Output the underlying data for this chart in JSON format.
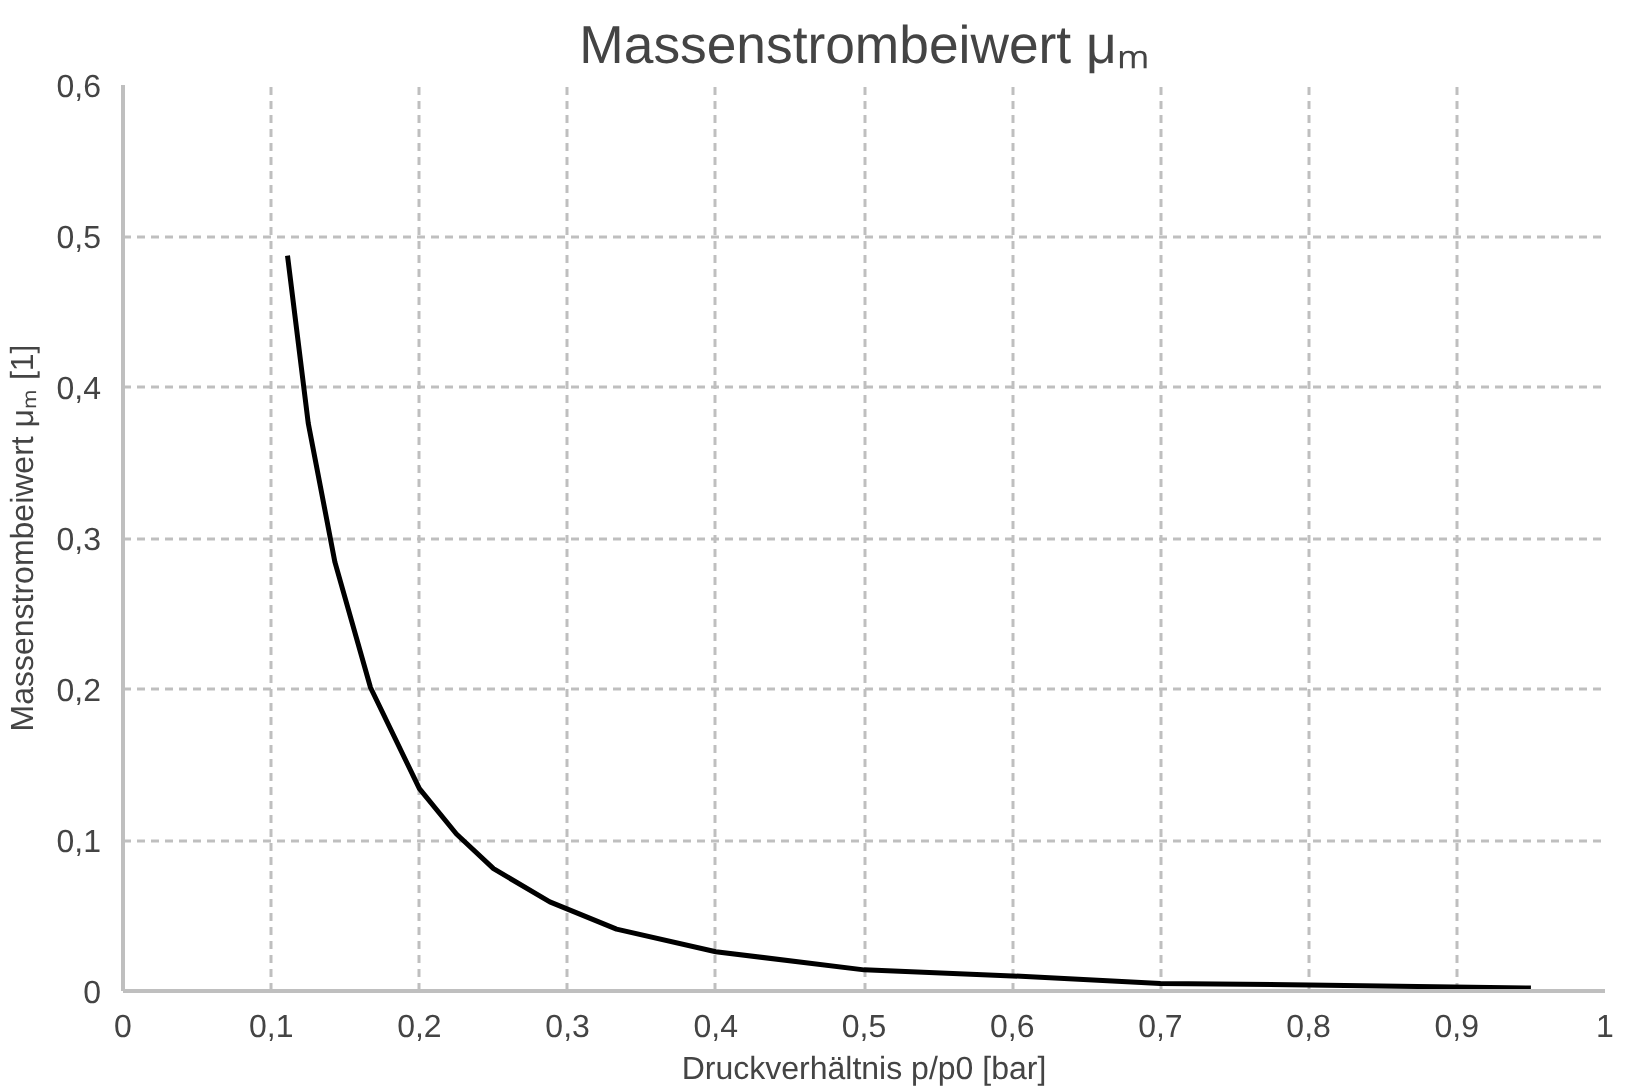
{
  "chart_data": {
    "type": "line",
    "title": "Massenstrombeiwert μₘ",
    "xlabel": "Druckverhältnis p/p0 [bar]",
    "ylabel": "Massenstrombeiwert μₘ [1]",
    "x": [
      0.111,
      0.125,
      0.143,
      0.167,
      0.2,
      0.225,
      0.25,
      0.288,
      0.333,
      0.4,
      0.5,
      0.6,
      0.7,
      0.8,
      0.95
    ],
    "series": [
      {
        "color": "#000000",
        "values": [
          0.487,
          0.376,
          0.284,
          0.201,
          0.134,
          0.104,
          0.081,
          0.059,
          0.041,
          0.026,
          0.014,
          0.01,
          0.005,
          0.004,
          0.002
        ]
      }
    ],
    "xlim": [
      0,
      1
    ],
    "ylim": [
      0,
      0.6
    ],
    "xticks": [
      0,
      {
        "value": 0.1,
        "label": "0,1"
      },
      {
        "value": 0.2,
        "label": "0,2"
      },
      {
        "value": 0.3,
        "label": "0,3"
      },
      {
        "value": 0.4,
        "label": "0,4"
      },
      {
        "value": 0.5,
        "label": "0,5"
      },
      {
        "value": 0.6,
        "label": "0,6"
      },
      {
        "value": 0.7,
        "label": "0,7"
      },
      {
        "value": 0.8,
        "label": "0,8"
      },
      {
        "value": 0.9,
        "label": "0,9"
      },
      1
    ],
    "yticks": [
      0,
      {
        "value": 0.1,
        "label": "0,1"
      },
      {
        "value": 0.2,
        "label": "0,2"
      },
      {
        "value": 0.3,
        "label": "0,3"
      },
      {
        "value": 0.4,
        "label": "0,4"
      },
      {
        "value": 0.5,
        "label": "0,5"
      },
      {
        "value": 0.6,
        "label": "0,6"
      }
    ],
    "grid": true,
    "line_style": "solid",
    "marker": "none"
  }
}
